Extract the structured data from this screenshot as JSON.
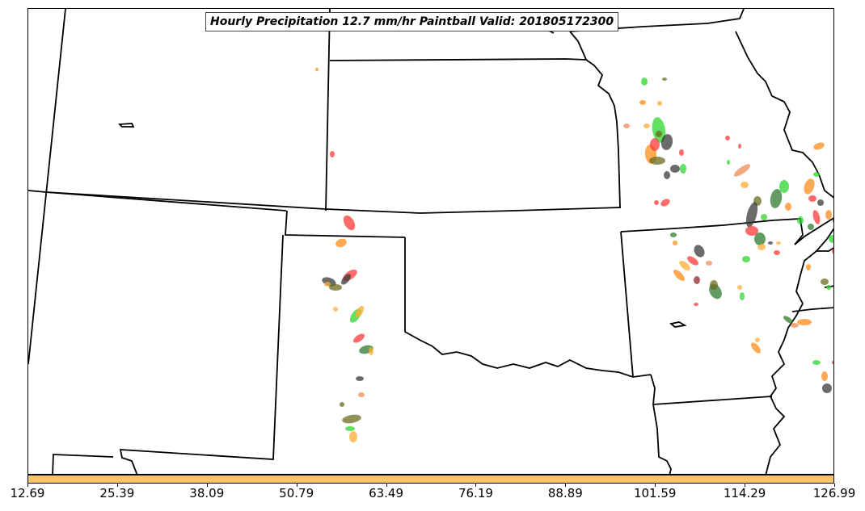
{
  "title": "Hourly Precipitation 12.7 mm/hr Paintball Valid: 201805172300",
  "colorbar": {
    "color": "#ffc466",
    "ticks": [
      "12.69",
      "25.39",
      "38.09",
      "50.79",
      "63.49",
      "76.19",
      "88.89",
      "101.59",
      "114.29",
      "126.99"
    ]
  },
  "paintball_colors": [
    "#ff3a3a",
    "#ff8c1a",
    "#ffad33",
    "#2f7a2f",
    "#6b6b1f",
    "#2dd62d",
    "#3a3a3a",
    "#8b2b2b",
    "#f08a5a"
  ]
}
